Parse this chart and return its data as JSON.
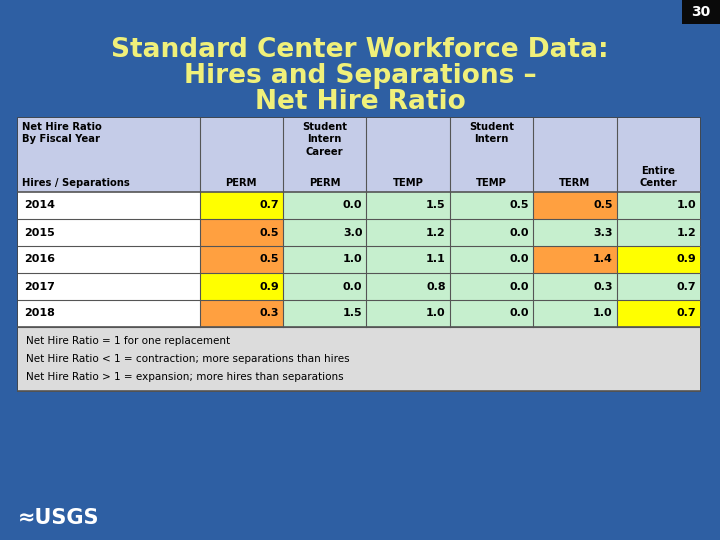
{
  "title_line1": "Standard Center Workforce Data:",
  "title_line2": "Hires and Separations –",
  "title_line3": "Net Hire Ratio",
  "page_number": "30",
  "bg_color": "#2E5FA3",
  "title_color": "#F0F07A",
  "header_bg": "#C5CCE8",
  "years": [
    "2014",
    "2015",
    "2016",
    "2017",
    "2018"
  ],
  "data": [
    [
      0.7,
      0.0,
      1.5,
      0.5,
      0.5,
      1.0
    ],
    [
      0.5,
      3.0,
      1.2,
      0.0,
      3.3,
      1.2
    ],
    [
      0.5,
      1.0,
      1.1,
      0.0,
      1.4,
      0.9
    ],
    [
      0.9,
      0.0,
      0.8,
      0.0,
      0.3,
      0.7
    ],
    [
      0.3,
      1.5,
      1.0,
      0.0,
      1.0,
      0.7
    ]
  ],
  "cell_colors": [
    [
      "#FFFF00",
      "#C6EFCE",
      "#C6EFCE",
      "#C6EFCE",
      "#FFA040",
      "#C6EFCE"
    ],
    [
      "#FFA040",
      "#C6EFCE",
      "#C6EFCE",
      "#C6EFCE",
      "#C6EFCE",
      "#C6EFCE"
    ],
    [
      "#FFA040",
      "#C6EFCE",
      "#C6EFCE",
      "#C6EFCE",
      "#FFA040",
      "#FFFF00"
    ],
    [
      "#FFFF00",
      "#C6EFCE",
      "#C6EFCE",
      "#C6EFCE",
      "#C6EFCE",
      "#C6EFCE"
    ],
    [
      "#FFA040",
      "#C6EFCE",
      "#C6EFCE",
      "#C6EFCE",
      "#C6EFCE",
      "#FFFF00"
    ]
  ],
  "year_row_colors": [
    "#FFFFFF",
    "#FFFFFF",
    "#FFFFFF",
    "#FFFFFF",
    "#FFFFFF"
  ],
  "footnotes": [
    "Net Hire Ratio = 1 for one replacement",
    "Net Hire Ratio < 1 = contraction; more separations than hires",
    "Net Hire Ratio > 1 = expansion; more hires than separations"
  ],
  "footnote_bg": "#DCDCDC"
}
